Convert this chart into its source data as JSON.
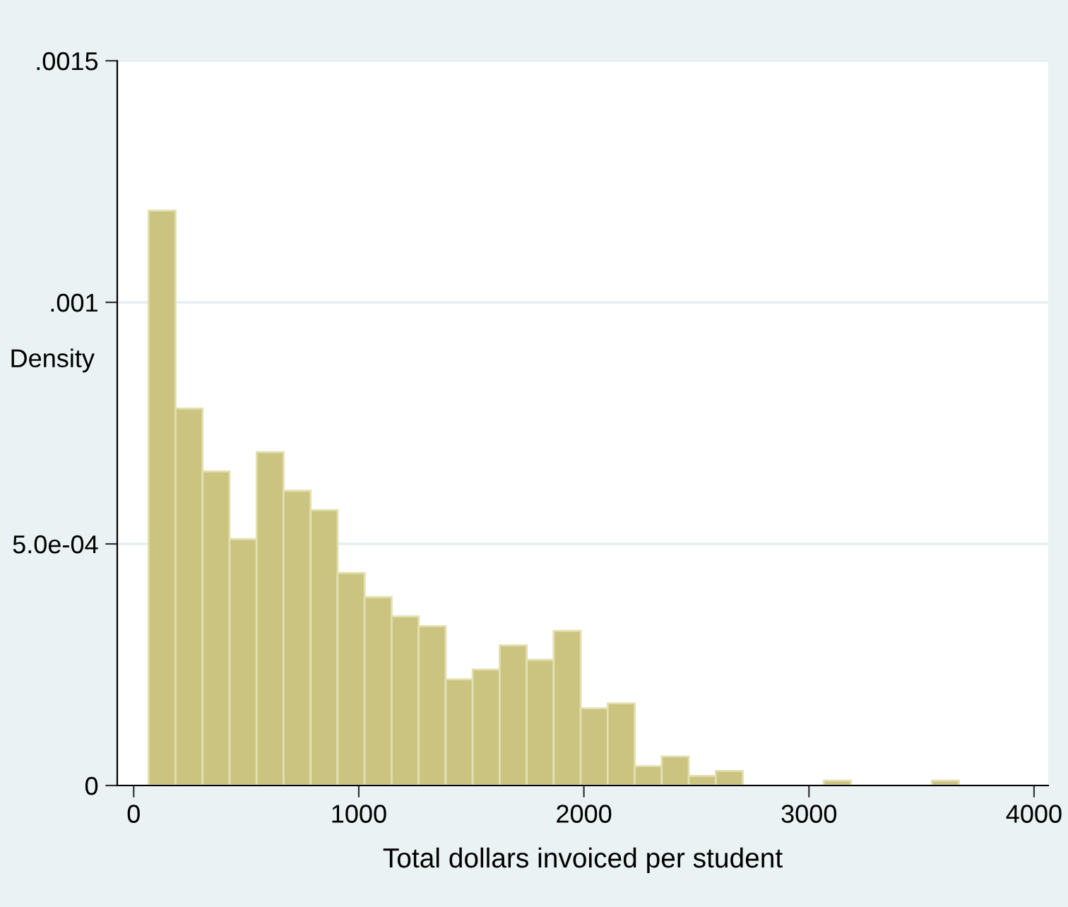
{
  "chart_data": {
    "type": "histogram",
    "xlabel": "Total dollars invoiced per student",
    "ylabel": "Density",
    "bins": [
      66,
      186,
      306,
      426,
      546,
      666,
      786,
      906,
      1026,
      1146,
      1266,
      1386,
      1506,
      1626,
      1746,
      1866,
      1986,
      2106,
      2226,
      2346,
      2466,
      2586,
      2706,
      2826,
      2946,
      3066,
      3186,
      3306,
      3426,
      3546,
      3666
    ],
    "values": [
      0.00119,
      0.00078,
      0.00065,
      0.00051,
      0.00069,
      0.00061,
      0.00057,
      0.00044,
      0.00039,
      0.00035,
      0.00033,
      0.00022,
      0.00024,
      0.00029,
      0.00026,
      0.00032,
      0.00016,
      0.00017,
      4e-05,
      6e-05,
      2e-05,
      3e-05,
      0,
      0,
      0,
      1e-05,
      0,
      0,
      0,
      1e-05
    ],
    "color": "#cbc480",
    "xlim": [
      -73,
      4063
    ],
    "ylim": [
      0,
      0.0015
    ],
    "xticks": [
      0,
      1000,
      2000,
      3000,
      4000
    ],
    "yticks": [
      {
        "value": 0,
        "label": "0"
      },
      {
        "value": 0.0005,
        "label": "5.0e-04"
      },
      {
        "value": 0.001,
        "label": ".001"
      },
      {
        "value": 0.0015,
        "label": ".0015"
      }
    ],
    "grid": "y",
    "legend": false
  }
}
